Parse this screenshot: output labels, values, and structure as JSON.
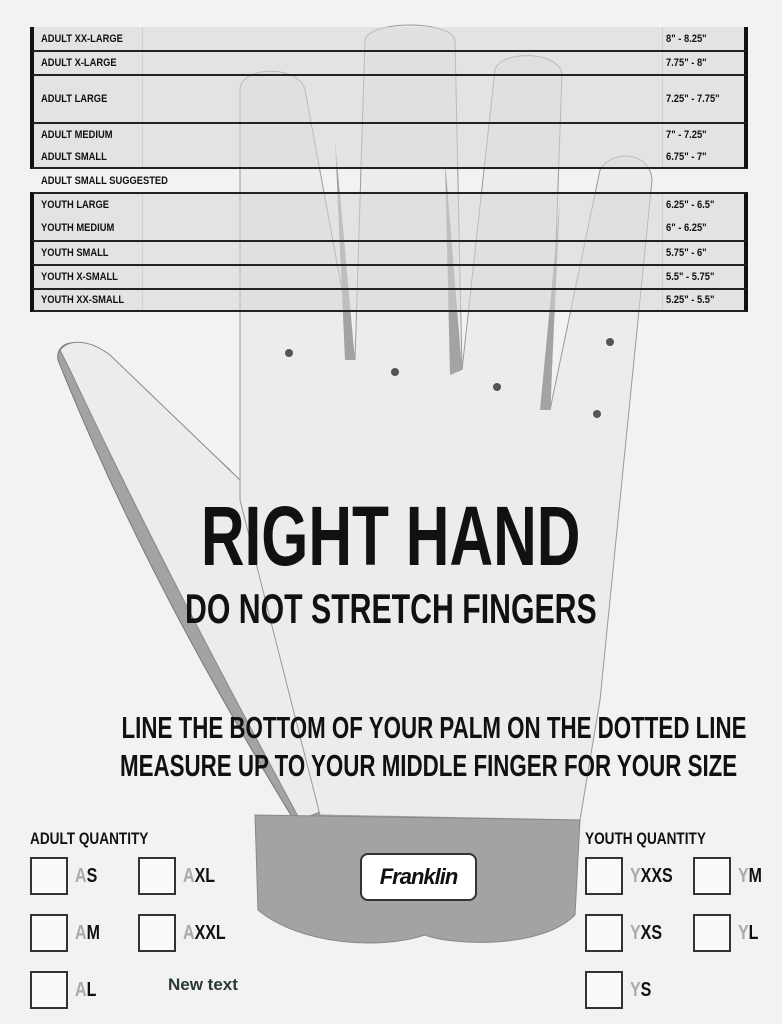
{
  "size_chart": [
    {
      "name": "ADULT XX-LARGE",
      "range": "8\" - 8.25\""
    },
    {
      "name": "ADULT X-LARGE",
      "range": "7.75\" - 8\""
    },
    {
      "name": "ADULT LARGE",
      "range": "7.25\" - 7.75\""
    },
    {
      "name": "ADULT MEDIUM",
      "range": "7\" - 7.25\""
    },
    {
      "name": "ADULT SMALL",
      "range": "6.75\" - 7\""
    },
    {
      "name": "ADULT SMALL SUGGESTED",
      "range": ""
    },
    {
      "name": "YOUTH LARGE",
      "range": "6.25\" - 6.5\""
    },
    {
      "name": "YOUTH MEDIUM",
      "range": "6\" - 6.25\""
    },
    {
      "name": "YOUTH SMALL",
      "range": "5.75\" - 6\""
    },
    {
      "name": "YOUTH X-SMALL",
      "range": "5.5\" - 5.75\""
    },
    {
      "name": "YOUTH XX-SMALL",
      "range": "5.25\" - 5.5\""
    }
  ],
  "heading": "RIGHT HAND",
  "subheading": "DO NOT STRETCH FINGERS",
  "instructions": [
    "LINE THE BOTTOM OF YOUR PALM ON THE DOTTED LINE",
    "MEASURE UP TO YOUR MIDDLE FINGER FOR YOUR SIZE"
  ],
  "brand": "Franklin",
  "adult": {
    "label": "ADULT QUANTITY",
    "options": [
      {
        "pre": "A",
        "size": "S"
      },
      {
        "pre": "A",
        "size": "XL"
      },
      {
        "pre": "A",
        "size": "M"
      },
      {
        "pre": "A",
        "size": "XXL"
      },
      {
        "pre": "A",
        "size": "L"
      }
    ]
  },
  "youth": {
    "label": "YOUTH QUANTITY",
    "options": [
      {
        "pre": "Y",
        "size": "XXS"
      },
      {
        "pre": "Y",
        "size": "M"
      },
      {
        "pre": "Y",
        "size": "XS"
      },
      {
        "pre": "Y",
        "size": "L"
      },
      {
        "pre": "Y",
        "size": "S"
      }
    ]
  },
  "new_text": "New text",
  "colors": {
    "glove_gray": "#a3a3a5",
    "glove_light": "#ececec",
    "ink": "#111111"
  }
}
